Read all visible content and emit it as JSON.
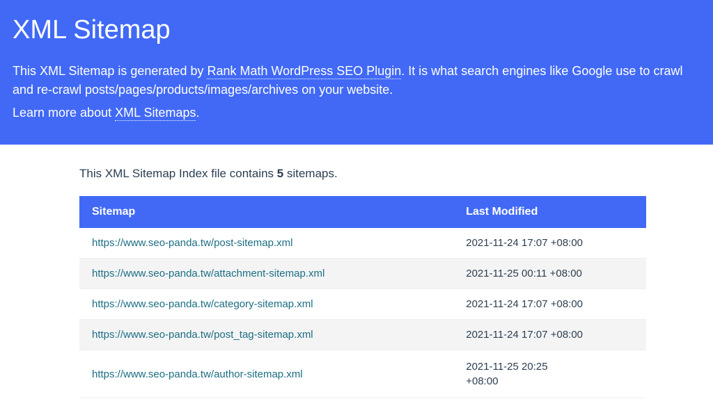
{
  "header": {
    "title": "XML Sitemap",
    "desc_prefix": "This XML Sitemap is generated by ",
    "desc_link": "Rank Math WordPress SEO Plugin",
    "desc_suffix": ". It is what search engines like Google use to crawl and re-crawl posts/pages/products/images/archives on your website.",
    "learn_prefix": "Learn more about ",
    "learn_link": "XML Sitemaps",
    "learn_suffix": "."
  },
  "count_line": {
    "prefix": "This XML Sitemap Index file contains ",
    "count": "5",
    "suffix": " sitemaps."
  },
  "table": {
    "columns": [
      "Sitemap",
      "Last Modified"
    ],
    "rows": [
      {
        "url": "https://www.seo-panda.tw/post-sitemap.xml",
        "modified": "2021-11-24 17:07 +08:00",
        "wrap": false
      },
      {
        "url": "https://www.seo-panda.tw/attachment-sitemap.xml",
        "modified": "2021-11-25 00:11 +08:00",
        "wrap": false
      },
      {
        "url": "https://www.seo-panda.tw/category-sitemap.xml",
        "modified": "2021-11-24 17:07 +08:00",
        "wrap": false
      },
      {
        "url": "https://www.seo-panda.tw/post_tag-sitemap.xml",
        "modified": "2021-11-24 17:07 +08:00",
        "wrap": false
      },
      {
        "url": "https://www.seo-panda.tw/author-sitemap.xml",
        "modified": "2021-11-25 20:25 +08:00",
        "wrap": true
      }
    ]
  },
  "colors": {
    "primary": "#4169f6",
    "link": "#1b6e84",
    "text": "#2c3e50",
    "row_alt": "#f4f4f4",
    "background": "#ffffff"
  }
}
